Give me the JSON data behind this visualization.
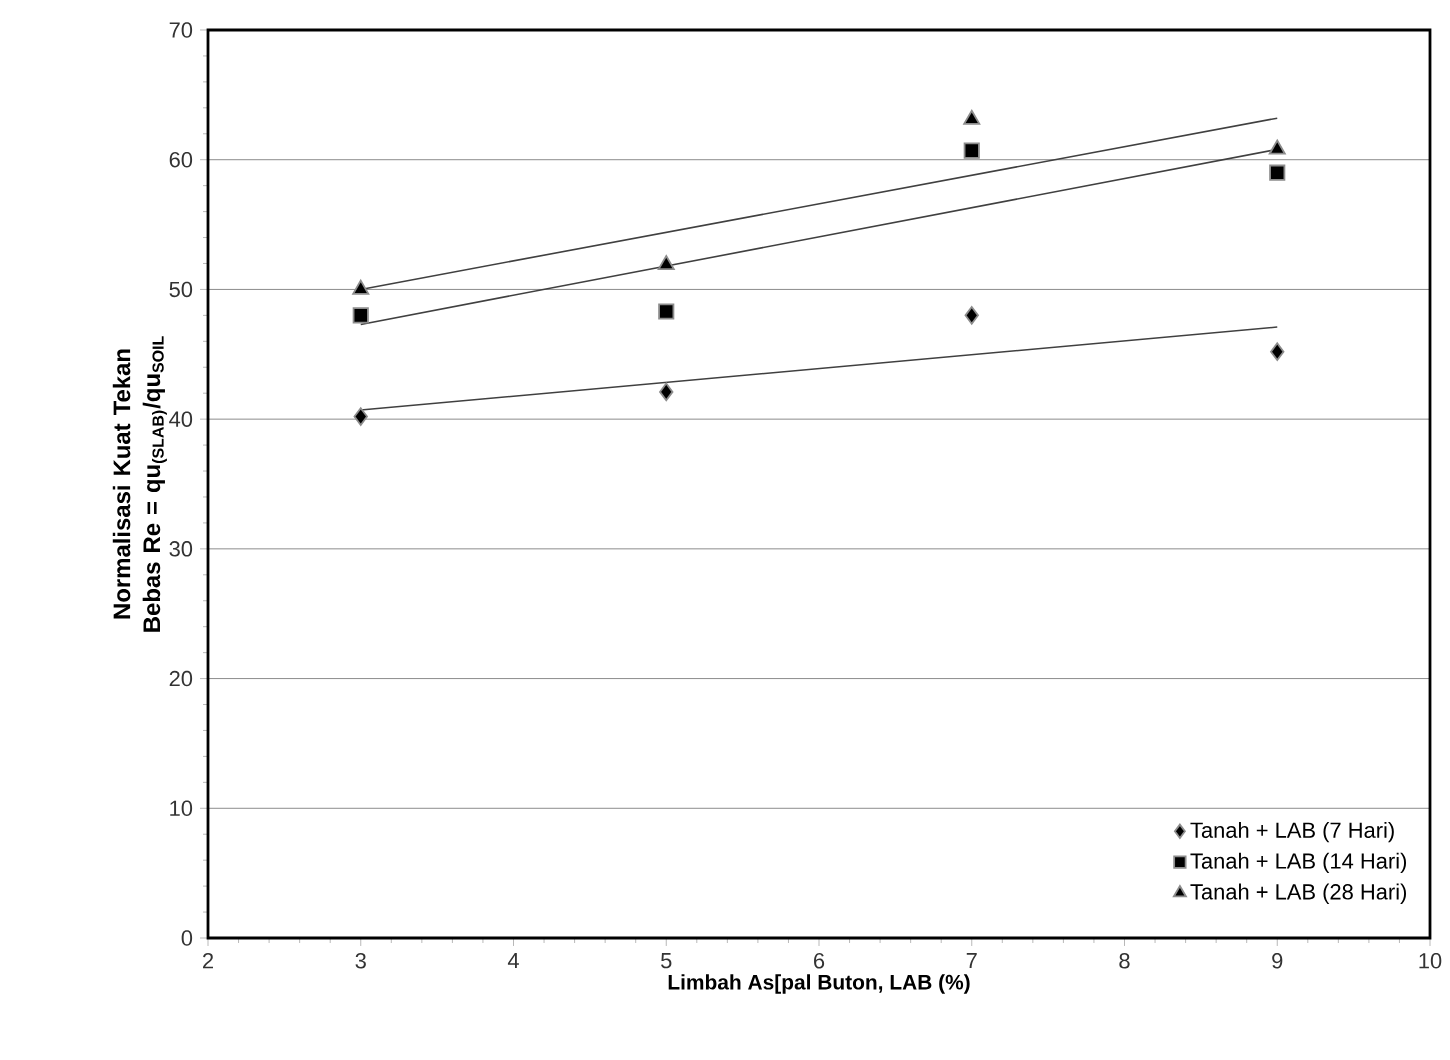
{
  "chart_data": {
    "type": "scatter",
    "xlabel": "Limbah As[pal Buton, LAB (%)",
    "ylabel": "Normalisasi Kuat Tekan Bebas Re = qu$_{(SLAB)}$/qu$_{SOIL}$",
    "xlim": [
      2,
      10
    ],
    "xticks": [
      2,
      3,
      4,
      5,
      6,
      7,
      8,
      9,
      10
    ],
    "ylim": [
      0,
      70
    ],
    "yticks": [
      0,
      10,
      20,
      30,
      40,
      50,
      60,
      70
    ],
    "grid": "y",
    "legend": "bottom right",
    "series": [
      {
        "name": "Tanah + LAB (7 Hari)",
        "color": "#000000",
        "marker": "diamond",
        "x": [
          3,
          5,
          7,
          9
        ],
        "values": [
          40.2,
          42.1,
          48.0,
          45.2
        ]
      },
      {
        "name": "Tanah + LAB (14 Hari)",
        "color": "#000000",
        "marker": "square",
        "x": [
          3,
          5,
          7,
          9
        ],
        "values": [
          48.0,
          48.3,
          60.7,
          59.0
        ]
      },
      {
        "name": "Tanah + LAB (28 Hari)",
        "color": "#000000",
        "marker": "triangle",
        "x": [
          3,
          5,
          7,
          9
        ],
        "values": [
          50.0,
          51.9,
          63.1,
          60.8
        ]
      },
      {
        "type": "line",
        "color": "#404040",
        "x": [
          3,
          9
        ],
        "values": [
          40.7,
          47.1
        ]
      },
      {
        "type": "line",
        "color": "#404040",
        "x": [
          3,
          9
        ],
        "values": [
          47.3,
          60.8
        ]
      },
      {
        "type": "line",
        "color": "#404040",
        "x": [
          3,
          9
        ],
        "values": [
          50.0,
          63.2
        ]
      }
    ]
  }
}
